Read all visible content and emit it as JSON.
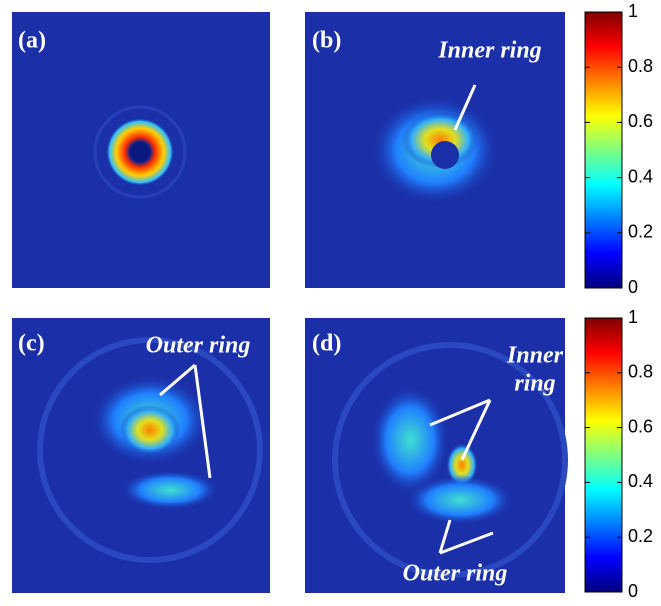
{
  "panels": [
    {
      "label": "(a)",
      "annotation": []
    },
    {
      "label": "(b)",
      "annotation": [
        "Inner ring"
      ]
    },
    {
      "label": "(c)",
      "annotation": [
        "Outer ring"
      ]
    },
    {
      "label": "(d)",
      "annotation": [
        "Inner",
        "ring",
        "Outer ring"
      ]
    }
  ],
  "colorbars": [
    {
      "lim": [
        0,
        1
      ],
      "ticks": [
        0,
        0.2,
        0.4,
        0.6,
        0.8,
        1
      ]
    },
    {
      "lim": [
        0,
        1
      ],
      "ticks": [
        0,
        0.2,
        0.4,
        0.6,
        0.8,
        1
      ]
    }
  ]
}
